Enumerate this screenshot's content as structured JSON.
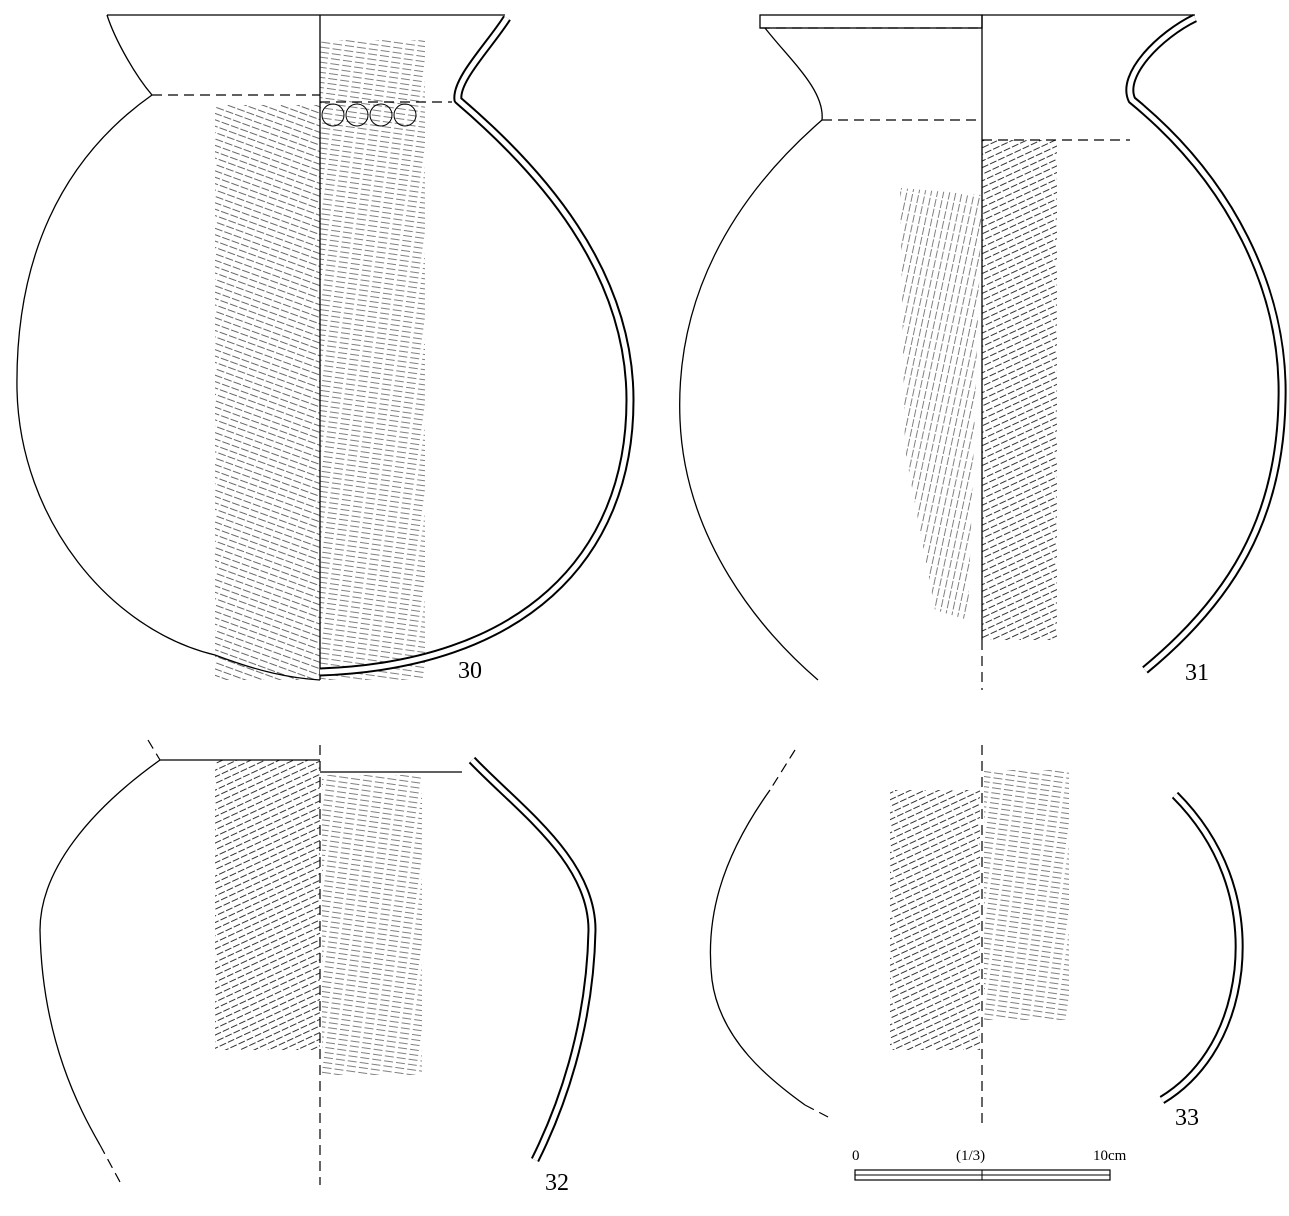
{
  "figures": [
    {
      "label": "30"
    },
    {
      "label": "31"
    },
    {
      "label": "32"
    },
    {
      "label": "33"
    }
  ],
  "scale": {
    "start": "0",
    "ratio": "(1/3)",
    "end": "10cm"
  }
}
